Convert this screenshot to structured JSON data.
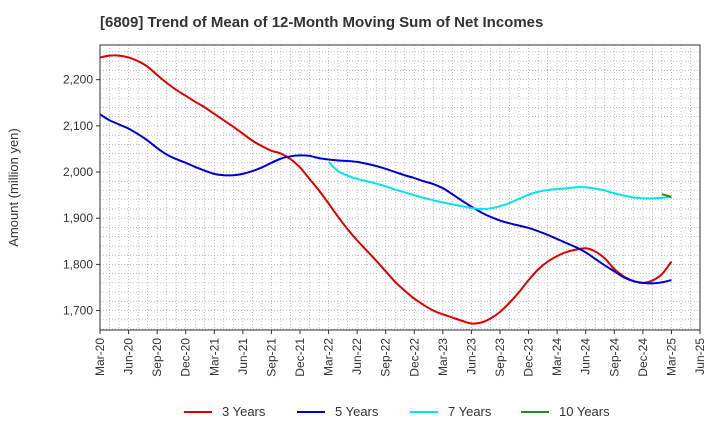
{
  "chart_data": {
    "type": "line",
    "title": "[6809]  Trend of Mean of 12-Month Moving Sum of Net Incomes",
    "xlabel": "",
    "ylabel": "Amount (million yen)",
    "ylim": [
      1658,
      2275
    ],
    "yticks": [
      1700,
      1800,
      1900,
      2000,
      2100,
      2200
    ],
    "ytick_labels": [
      "1,700",
      "1,800",
      "1,900",
      "2,000",
      "2,100",
      "2,200"
    ],
    "xticks": [
      "Mar-20",
      "Jun-20",
      "Sep-20",
      "Dec-20",
      "Mar-21",
      "Jun-21",
      "Sep-21",
      "Dec-21",
      "Mar-22",
      "Jun-22",
      "Sep-22",
      "Dec-22",
      "Mar-23",
      "Jun-23",
      "Sep-23",
      "Dec-23",
      "Mar-24",
      "Jun-24",
      "Sep-24",
      "Dec-24",
      "Mar-25",
      "Jun-25"
    ],
    "grid": true,
    "legend_position": "bottom",
    "series": [
      {
        "name": "3 Years",
        "color": "#dd0000",
        "points": [
          [
            "Mar-20",
            2248
          ],
          [
            "Apr-20",
            2252
          ],
          [
            "May-20",
            2252
          ],
          [
            "Jun-20",
            2248
          ],
          [
            "Jul-20",
            2240
          ],
          [
            "Aug-20",
            2228
          ],
          [
            "Sep-20",
            2210
          ],
          [
            "Oct-20",
            2193
          ],
          [
            "Nov-20",
            2178
          ],
          [
            "Dec-20",
            2165
          ],
          [
            "Jan-21",
            2152
          ],
          [
            "Feb-21",
            2140
          ],
          [
            "Mar-21",
            2126
          ],
          [
            "Apr-21",
            2112
          ],
          [
            "May-21",
            2098
          ],
          [
            "Jun-21",
            2083
          ],
          [
            "Jul-21",
            2068
          ],
          [
            "Aug-21",
            2056
          ],
          [
            "Sep-21",
            2046
          ],
          [
            "Oct-21",
            2040
          ],
          [
            "Nov-21",
            2028
          ],
          [
            "Dec-21",
            2010
          ],
          [
            "Jan-22",
            1985
          ],
          [
            "Feb-22",
            1960
          ],
          [
            "Mar-22",
            1932
          ],
          [
            "Apr-22",
            1903
          ],
          [
            "May-22",
            1876
          ],
          [
            "Jun-22",
            1852
          ],
          [
            "Jul-22",
            1830
          ],
          [
            "Aug-22",
            1808
          ],
          [
            "Sep-22",
            1785
          ],
          [
            "Oct-22",
            1762
          ],
          [
            "Nov-22",
            1743
          ],
          [
            "Dec-22",
            1726
          ],
          [
            "Jan-23",
            1712
          ],
          [
            "Feb-23",
            1700
          ],
          [
            "Mar-23",
            1692
          ],
          [
            "Apr-23",
            1685
          ],
          [
            "May-23",
            1678
          ],
          [
            "Jun-23",
            1672
          ],
          [
            "Jul-23",
            1674
          ],
          [
            "Aug-23",
            1683
          ],
          [
            "Sep-23",
            1697
          ],
          [
            "Oct-23",
            1717
          ],
          [
            "Nov-23",
            1740
          ],
          [
            "Dec-23",
            1766
          ],
          [
            "Jan-24",
            1789
          ],
          [
            "Feb-24",
            1806
          ],
          [
            "Mar-24",
            1818
          ],
          [
            "Apr-24",
            1827
          ],
          [
            "May-24",
            1832
          ],
          [
            "Jun-24",
            1835
          ],
          [
            "Jul-24",
            1828
          ],
          [
            "Aug-24",
            1813
          ],
          [
            "Sep-24",
            1790
          ],
          [
            "Oct-24",
            1774
          ],
          [
            "Nov-24",
            1764
          ],
          [
            "Dec-24",
            1760
          ],
          [
            "Jan-25",
            1765
          ],
          [
            "Feb-25",
            1779
          ],
          [
            "Mar-25",
            1806
          ]
        ]
      },
      {
        "name": "5 Years",
        "color": "#0000cc",
        "points": [
          [
            "Mar-20",
            2125
          ],
          [
            "Apr-20",
            2112
          ],
          [
            "May-20",
            2103
          ],
          [
            "Jun-20",
            2094
          ],
          [
            "Jul-20",
            2082
          ],
          [
            "Aug-20",
            2068
          ],
          [
            "Sep-20",
            2052
          ],
          [
            "Oct-20",
            2038
          ],
          [
            "Nov-20",
            2028
          ],
          [
            "Dec-20",
            2020
          ],
          [
            "Jan-21",
            2011
          ],
          [
            "Feb-21",
            2003
          ],
          [
            "Mar-21",
            1996
          ],
          [
            "Apr-21",
            1993
          ],
          [
            "May-21",
            1993
          ],
          [
            "Jun-21",
            1996
          ],
          [
            "Jul-21",
            2002
          ],
          [
            "Aug-21",
            2010
          ],
          [
            "Sep-21",
            2020
          ],
          [
            "Oct-21",
            2029
          ],
          [
            "Nov-21",
            2034
          ],
          [
            "Dec-21",
            2036
          ],
          [
            "Jan-22",
            2035
          ],
          [
            "Feb-22",
            2030
          ],
          [
            "Mar-22",
            2027
          ],
          [
            "Apr-22",
            2025
          ],
          [
            "May-22",
            2024
          ],
          [
            "Jun-22",
            2022
          ],
          [
            "Jul-22",
            2018
          ],
          [
            "Aug-22",
            2013
          ],
          [
            "Sep-22",
            2007
          ],
          [
            "Oct-22",
            2000
          ],
          [
            "Nov-22",
            1993
          ],
          [
            "Dec-22",
            1987
          ],
          [
            "Jan-23",
            1980
          ],
          [
            "Feb-23",
            1974
          ],
          [
            "Mar-23",
            1965
          ],
          [
            "Apr-23",
            1952
          ],
          [
            "May-23",
            1938
          ],
          [
            "Jun-23",
            1925
          ],
          [
            "Jul-23",
            1913
          ],
          [
            "Aug-23",
            1903
          ],
          [
            "Sep-23",
            1895
          ],
          [
            "Oct-23",
            1889
          ],
          [
            "Nov-23",
            1884
          ],
          [
            "Dec-23",
            1879
          ],
          [
            "Jan-24",
            1872
          ],
          [
            "Feb-24",
            1864
          ],
          [
            "Mar-24",
            1855
          ],
          [
            "Apr-24",
            1846
          ],
          [
            "May-24",
            1837
          ],
          [
            "Jun-24",
            1826
          ],
          [
            "Jul-24",
            1812
          ],
          [
            "Aug-24",
            1798
          ],
          [
            "Sep-24",
            1785
          ],
          [
            "Oct-24",
            1772
          ],
          [
            "Nov-24",
            1764
          ],
          [
            "Dec-24",
            1760
          ],
          [
            "Jan-25",
            1759
          ],
          [
            "Feb-25",
            1761
          ],
          [
            "Mar-25",
            1766
          ]
        ]
      },
      {
        "name": "7 Years",
        "color": "#00e5ee",
        "points": [
          [
            "Mar-22",
            2022
          ],
          [
            "Apr-22",
            2002
          ],
          [
            "May-22",
            1992
          ],
          [
            "Jun-22",
            1985
          ],
          [
            "Jul-22",
            1980
          ],
          [
            "Aug-22",
            1975
          ],
          [
            "Sep-22",
            1969
          ],
          [
            "Oct-22",
            1962
          ],
          [
            "Nov-22",
            1956
          ],
          [
            "Dec-22",
            1950
          ],
          [
            "Jan-23",
            1944
          ],
          [
            "Feb-23",
            1939
          ],
          [
            "Mar-23",
            1934
          ],
          [
            "Apr-23",
            1930
          ],
          [
            "May-23",
            1926
          ],
          [
            "Jun-23",
            1922
          ],
          [
            "Jul-23",
            1920
          ],
          [
            "Aug-23",
            1921
          ],
          [
            "Sep-23",
            1926
          ],
          [
            "Oct-23",
            1933
          ],
          [
            "Nov-23",
            1942
          ],
          [
            "Dec-23",
            1951
          ],
          [
            "Jan-24",
            1957
          ],
          [
            "Feb-24",
            1961
          ],
          [
            "Mar-24",
            1963
          ],
          [
            "Apr-24",
            1965
          ],
          [
            "May-24",
            1967
          ],
          [
            "Jun-24",
            1967
          ],
          [
            "Jul-24",
            1964
          ],
          [
            "Aug-24",
            1960
          ],
          [
            "Sep-24",
            1954
          ],
          [
            "Oct-24",
            1949
          ],
          [
            "Nov-24",
            1945
          ],
          [
            "Dec-24",
            1943
          ],
          [
            "Jan-25",
            1943
          ],
          [
            "Feb-25",
            1944
          ],
          [
            "Mar-25",
            1946
          ]
        ]
      },
      {
        "name": "10 Years",
        "color": "#228b22",
        "points": [
          [
            "Feb-25",
            1952
          ],
          [
            "Mar-25",
            1946
          ]
        ]
      }
    ]
  }
}
